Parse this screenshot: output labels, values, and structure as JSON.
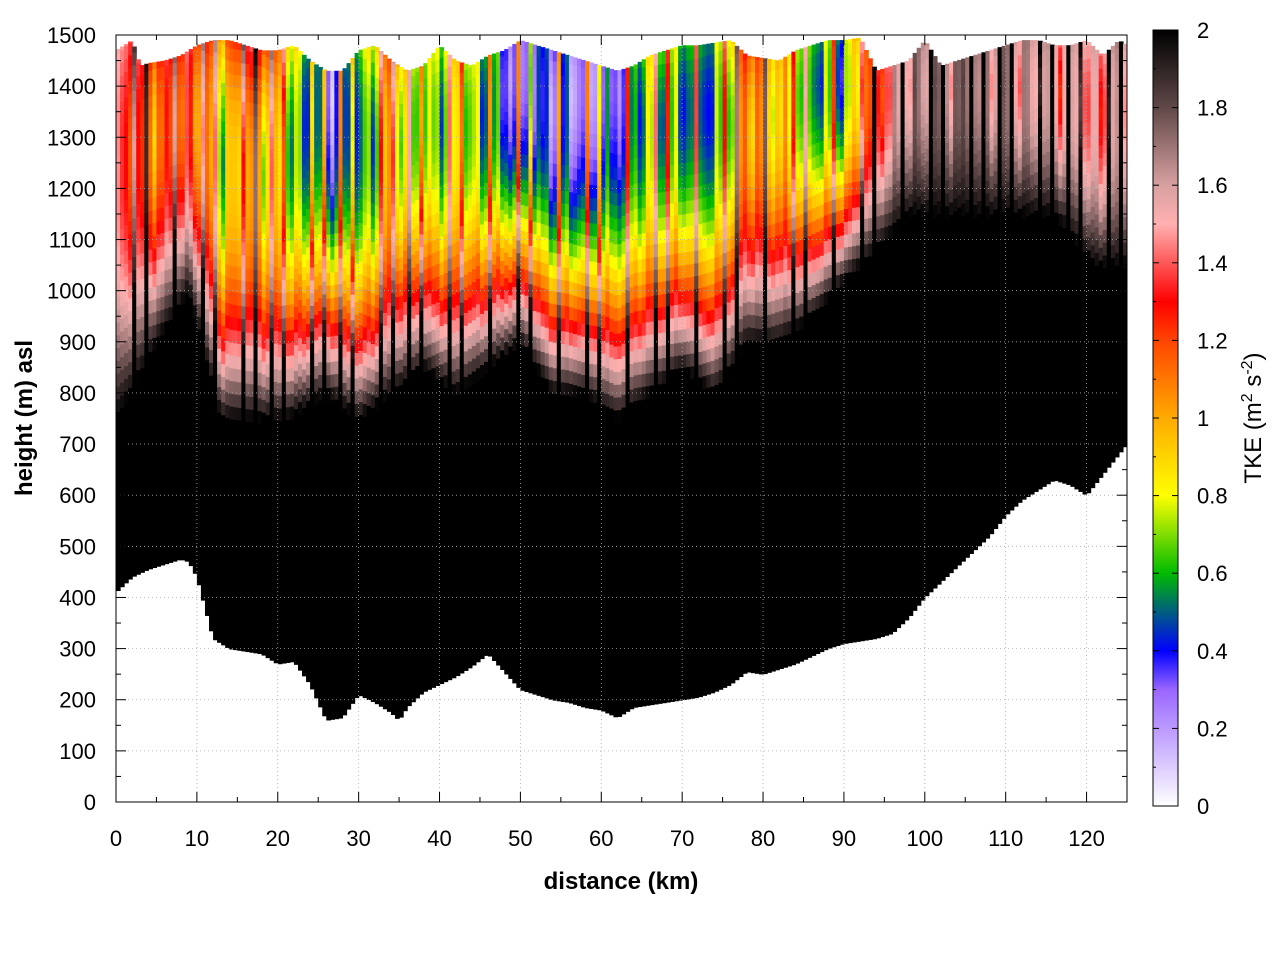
{
  "chart_data": {
    "type": "heatmap",
    "title": "",
    "xlabel": "distance (km)",
    "ylabel": "height (m) asl",
    "xlim": [
      0,
      125
    ],
    "ylim": [
      0,
      1500
    ],
    "xticks": [
      0,
      10,
      20,
      30,
      40,
      50,
      60,
      70,
      80,
      90,
      100,
      110,
      120
    ],
    "yticks": [
      0,
      100,
      200,
      300,
      400,
      500,
      600,
      700,
      800,
      900,
      1000,
      1100,
      1200,
      1300,
      1400,
      1500
    ],
    "grid": true,
    "colorbar": {
      "label_main": "TKE (m",
      "label_sup1": "2",
      "label_mid": " s",
      "label_sup2": "-2",
      "label_end": ")",
      "range": [
        0,
        2
      ],
      "ticks": [
        0,
        0.2,
        0.4,
        0.6,
        0.8,
        1,
        1.2,
        1.4,
        1.6,
        1.8,
        2
      ],
      "tick_labels": [
        "0",
        "0.2",
        "0.4",
        "0.6",
        "0.8",
        "1",
        "1.2",
        "1.4",
        "1.6",
        "1.8",
        "2"
      ],
      "stops": [
        {
          "value": 0.0,
          "color": "#ffffff"
        },
        {
          "value": 0.3,
          "color": "#9966ff"
        },
        {
          "value": 0.4,
          "color": "#0000ff"
        },
        {
          "value": 0.6,
          "color": "#00bb00"
        },
        {
          "value": 0.8,
          "color": "#ffff00"
        },
        {
          "value": 1.0,
          "color": "#ffaa00"
        },
        {
          "value": 1.2,
          "color": "#ff4400"
        },
        {
          "value": 1.3,
          "color": "#ff0000"
        },
        {
          "value": 1.5,
          "color": "#ffb0b0"
        },
        {
          "value": 1.6,
          "color": "#d8a0a0"
        },
        {
          "value": 1.8,
          "color": "#604848"
        },
        {
          "value": 2.0,
          "color": "#000000"
        }
      ]
    },
    "terrain_height": {
      "x": [
        0,
        2,
        4,
        6,
        8,
        9,
        10,
        11,
        12,
        14,
        16,
        18,
        20,
        22,
        24,
        26,
        28,
        30,
        32,
        34,
        35,
        36,
        38,
        40,
        42,
        44,
        46,
        48,
        50,
        52,
        54,
        56,
        58,
        60,
        62,
        64,
        66,
        68,
        70,
        72,
        74,
        76,
        78,
        80,
        82,
        84,
        86,
        88,
        90,
        92,
        94,
        96,
        98,
        100,
        102,
        104,
        106,
        108,
        110,
        112,
        114,
        116,
        118,
        120,
        122,
        124,
        125
      ],
      "y": [
        410,
        440,
        455,
        465,
        475,
        470,
        440,
        380,
        320,
        300,
        295,
        290,
        270,
        275,
        230,
        160,
        165,
        210,
        195,
        175,
        160,
        185,
        215,
        230,
        245,
        265,
        290,
        255,
        220,
        210,
        200,
        195,
        185,
        180,
        165,
        185,
        190,
        195,
        200,
        205,
        215,
        230,
        255,
        250,
        260,
        270,
        285,
        300,
        310,
        315,
        320,
        330,
        360,
        400,
        430,
        460,
        490,
        520,
        560,
        590,
        610,
        630,
        620,
        600,
        640,
        680,
        700
      ]
    },
    "top_height": {
      "x": [
        0,
        1,
        2,
        3,
        4,
        6,
        8,
        10,
        12,
        14,
        16,
        18,
        20,
        22,
        24,
        26,
        28,
        30,
        32,
        34,
        36,
        38,
        40,
        42,
        44,
        46,
        48,
        50,
        52,
        54,
        56,
        58,
        60,
        62,
        64,
        66,
        68,
        70,
        72,
        74,
        76,
        78,
        80,
        82,
        84,
        86,
        88,
        90,
        92,
        94,
        96,
        98,
        100,
        102,
        104,
        106,
        108,
        110,
        112,
        114,
        116,
        118,
        120,
        122,
        124,
        125
      ],
      "y": [
        1470,
        1480,
        1490,
        1440,
        1445,
        1450,
        1460,
        1480,
        1490,
        1490,
        1480,
        1470,
        1470,
        1480,
        1450,
        1430,
        1430,
        1470,
        1480,
        1450,
        1430,
        1440,
        1480,
        1450,
        1440,
        1460,
        1470,
        1490,
        1480,
        1470,
        1460,
        1450,
        1440,
        1430,
        1440,
        1460,
        1470,
        1480,
        1480,
        1485,
        1490,
        1460,
        1455,
        1450,
        1470,
        1480,
        1490,
        1490,
        1495,
        1430,
        1440,
        1450,
        1490,
        1440,
        1450,
        1460,
        1470,
        1480,
        1490,
        1490,
        1480,
        1480,
        1490,
        1460,
        1490,
        1480
      ]
    },
    "column_profiles": [
      {
        "x": 0,
        "bottom": 0.0,
        "peak_height": 1250,
        "peak": 1.3,
        "width": 500
      },
      {
        "x": 5,
        "bottom": 0.0,
        "peak_height": 1300,
        "peak": 1.1,
        "width": 400
      },
      {
        "x": 9,
        "bottom": 0.0,
        "peak_height": 1350,
        "peak": 1.2,
        "width": 350
      },
      {
        "x": 13,
        "bottom": 0.0,
        "peak_height": 1250,
        "peak": 0.75,
        "width": 500
      },
      {
        "x": 17,
        "bottom": 0.0,
        "peak_height": 1200,
        "peak": 1.0,
        "width": 450
      },
      {
        "x": 21,
        "bottom": 0.0,
        "peak_height": 1250,
        "peak": 0.7,
        "width": 500
      },
      {
        "x": 26,
        "bottom": 0.0,
        "peak_height": 1400,
        "peak": 0.3,
        "width": 600
      },
      {
        "x": 30,
        "bottom": 0.0,
        "peak_height": 1300,
        "peak": 0.45,
        "width": 550
      },
      {
        "x": 34,
        "bottom": 0.0,
        "peak_height": 1250,
        "peak": 0.9,
        "width": 450
      },
      {
        "x": 38,
        "bottom": 0.0,
        "peak_height": 1350,
        "peak": 0.6,
        "width": 500
      },
      {
        "x": 42,
        "bottom": 0.0,
        "peak_height": 1300,
        "peak": 0.75,
        "width": 500
      },
      {
        "x": 46,
        "bottom": 0.0,
        "peak_height": 1350,
        "peak": 0.55,
        "width": 500
      },
      {
        "x": 50,
        "bottom": 0.0,
        "peak_height": 1450,
        "peak": 0.25,
        "width": 550
      },
      {
        "x": 54,
        "bottom": 0.0,
        "peak_height": 1350,
        "peak": 0.35,
        "width": 550
      },
      {
        "x": 58,
        "bottom": 0.0,
        "peak_height": 1400,
        "peak": 0.25,
        "width": 600
      },
      {
        "x": 62,
        "bottom": 0.0,
        "peak_height": 1400,
        "peak": 0.35,
        "width": 650
      },
      {
        "x": 66,
        "bottom": 0.0,
        "peak_height": 1300,
        "peak": 0.7,
        "width": 500
      },
      {
        "x": 70,
        "bottom": 0.0,
        "peak_height": 1350,
        "peak": 0.55,
        "width": 500
      },
      {
        "x": 74,
        "bottom": 0.0,
        "peak_height": 1350,
        "peak": 0.5,
        "width": 550
      },
      {
        "x": 78,
        "bottom": 0.0,
        "peak_height": 1300,
        "peak": 1.1,
        "width": 400
      },
      {
        "x": 82,
        "bottom": 0.0,
        "peak_height": 1350,
        "peak": 0.9,
        "width": 450
      },
      {
        "x": 86,
        "bottom": 0.0,
        "peak_height": 1400,
        "peak": 0.6,
        "width": 450
      },
      {
        "x": 90,
        "bottom": 0.0,
        "peak_height": 1420,
        "peak": 0.55,
        "width": 400
      },
      {
        "x": 94,
        "bottom": 0.0,
        "peak_height": 1380,
        "peak": 1.3,
        "width": 300
      },
      {
        "x": 98,
        "bottom": 0.0,
        "peak_height": 1400,
        "peak": 1.6,
        "width": 250
      },
      {
        "x": 104,
        "bottom": 0.0,
        "peak_height": 1400,
        "peak": 1.7,
        "width": 250
      },
      {
        "x": 110,
        "bottom": 0.0,
        "peak_height": 1400,
        "peak": 1.6,
        "width": 250
      },
      {
        "x": 116,
        "bottom": 0.0,
        "peak_height": 1400,
        "peak": 1.5,
        "width": 250
      },
      {
        "x": 121,
        "bottom": 0.0,
        "peak_height": 1350,
        "peak": 1.4,
        "width": 300
      },
      {
        "x": 125,
        "bottom": 0.0,
        "peak_height": 1350,
        "peak": 1.5,
        "width": 300
      }
    ]
  }
}
